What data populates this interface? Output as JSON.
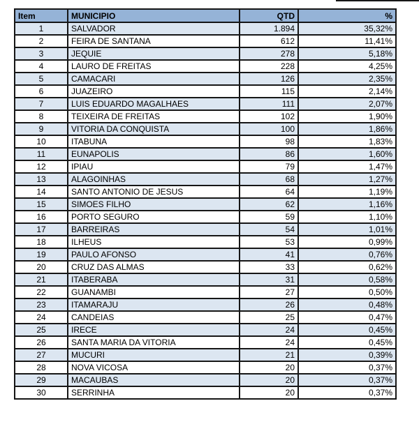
{
  "colors": {
    "header_bg": "#95B3D7",
    "row_alt_bg": "#DCE6F1",
    "row_bg": "#FFFFFF",
    "border": "#161616",
    "text": "#000000"
  },
  "table": {
    "columns": [
      {
        "key": "item",
        "label": "Item"
      },
      {
        "key": "municipio",
        "label": "MUNICIPIO"
      },
      {
        "key": "qtd",
        "label": "QTD"
      },
      {
        "key": "pct",
        "label": "%"
      }
    ],
    "rows": [
      {
        "item": "1",
        "municipio": "SALVADOR",
        "qtd": "1.894",
        "pct": "35,32%"
      },
      {
        "item": "2",
        "municipio": "FEIRA DE SANTANA",
        "qtd": "612",
        "pct": "11,41%"
      },
      {
        "item": "3",
        "municipio": "JEQUIE",
        "qtd": "278",
        "pct": "5,18%"
      },
      {
        "item": "4",
        "municipio": "LAURO DE FREITAS",
        "qtd": "228",
        "pct": "4,25%"
      },
      {
        "item": "5",
        "municipio": "CAMACARI",
        "qtd": "126",
        "pct": "2,35%"
      },
      {
        "item": "6",
        "municipio": "JUAZEIRO",
        "qtd": "115",
        "pct": "2,14%"
      },
      {
        "item": "7",
        "municipio": "LUIS EDUARDO MAGALHAES",
        "qtd": "111",
        "pct": "2,07%"
      },
      {
        "item": "8",
        "municipio": "TEIXEIRA DE FREITAS",
        "qtd": "102",
        "pct": "1,90%"
      },
      {
        "item": "9",
        "municipio": "VITORIA DA CONQUISTA",
        "qtd": "100",
        "pct": "1,86%"
      },
      {
        "item": "10",
        "municipio": "ITABUNA",
        "qtd": "98",
        "pct": "1,83%"
      },
      {
        "item": "11",
        "municipio": "EUNAPOLIS",
        "qtd": "86",
        "pct": "1,60%"
      },
      {
        "item": "12",
        "municipio": "IPIAU",
        "qtd": "79",
        "pct": "1,47%"
      },
      {
        "item": "13",
        "municipio": "ALAGOINHAS",
        "qtd": "68",
        "pct": "1,27%"
      },
      {
        "item": "14",
        "municipio": "SANTO ANTONIO DE JESUS",
        "qtd": "64",
        "pct": "1,19%"
      },
      {
        "item": "15",
        "municipio": "SIMOES FILHO",
        "qtd": "62",
        "pct": "1,16%"
      },
      {
        "item": "16",
        "municipio": "PORTO SEGURO",
        "qtd": "59",
        "pct": "1,10%"
      },
      {
        "item": "17",
        "municipio": "BARREIRAS",
        "qtd": "54",
        "pct": "1,01%"
      },
      {
        "item": "18",
        "municipio": "ILHEUS",
        "qtd": "53",
        "pct": "0,99%"
      },
      {
        "item": "19",
        "municipio": "PAULO AFONSO",
        "qtd": "41",
        "pct": "0,76%"
      },
      {
        "item": "20",
        "municipio": "CRUZ DAS ALMAS",
        "qtd": "33",
        "pct": "0,62%"
      },
      {
        "item": "21",
        "municipio": "ITABERABA",
        "qtd": "31",
        "pct": "0,58%"
      },
      {
        "item": "22",
        "municipio": "GUANAMBI",
        "qtd": "27",
        "pct": "0,50%"
      },
      {
        "item": "23",
        "municipio": "ITAMARAJU",
        "qtd": "26",
        "pct": "0,48%"
      },
      {
        "item": "24",
        "municipio": "CANDEIAS",
        "qtd": "25",
        "pct": "0,47%"
      },
      {
        "item": "25",
        "municipio": "IRECE",
        "qtd": "24",
        "pct": "0,45%"
      },
      {
        "item": "26",
        "municipio": "SANTA MARIA DA VITORIA",
        "qtd": "24",
        "pct": "0,45%"
      },
      {
        "item": "27",
        "municipio": "MUCURI",
        "qtd": "21",
        "pct": "0,39%"
      },
      {
        "item": "28",
        "municipio": "NOVA VICOSA",
        "qtd": "20",
        "pct": "0,37%"
      },
      {
        "item": "29",
        "municipio": "MACAUBAS",
        "qtd": "20",
        "pct": "0,37%"
      },
      {
        "item": "30",
        "municipio": "SERRINHA",
        "qtd": "20",
        "pct": "0,37%"
      }
    ]
  }
}
